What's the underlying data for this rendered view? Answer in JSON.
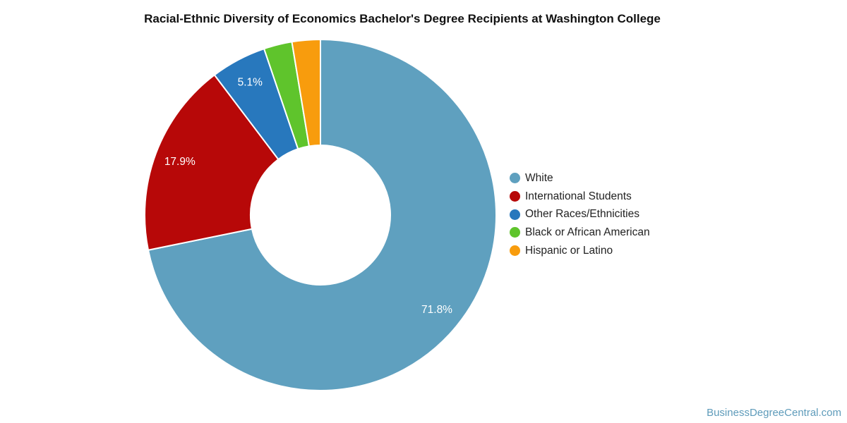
{
  "page": {
    "background": "#ffffff",
    "watermark": "BusinessDegreeCentral.com",
    "watermark_color": "#5e9bba"
  },
  "chart_data": {
    "type": "pie",
    "subtype": "donut",
    "title": "Racial-Ethnic Diversity of Economics Bachelor's Degree Recipients at Washington College",
    "legend_position": "right",
    "direction": "clockwise",
    "start_angle_deg": 0,
    "inner_radius_ratio": 0.4,
    "label_color": "#ffffff",
    "slice_border_color": "#ffffff",
    "slices": [
      {
        "name": "White",
        "value": 71.8,
        "label_visible": true,
        "color": "#5fa0bf"
      },
      {
        "name": "International Students",
        "value": 17.9,
        "label_visible": true,
        "color": "#b70808"
      },
      {
        "name": "Other Races/Ethnicities",
        "value": 5.1,
        "label_visible": true,
        "color": "#2878bd"
      },
      {
        "name": "Black or African American",
        "value": 2.6,
        "label_visible": false,
        "color": "#5fc42c"
      },
      {
        "name": "Hispanic or Latino",
        "value": 2.6,
        "label_visible": false,
        "color": "#f89c0d"
      }
    ]
  }
}
